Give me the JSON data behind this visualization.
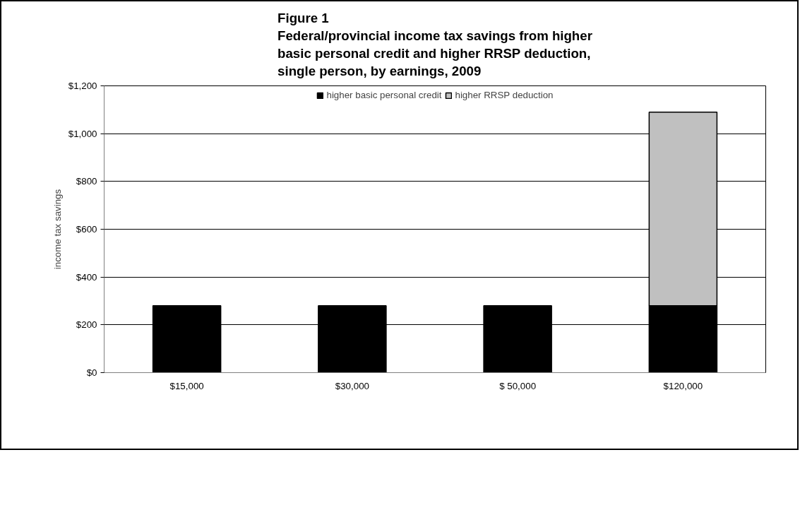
{
  "chart_data": {
    "type": "bar",
    "title": "Figure 1\nFederal/provincial income tax savings from higher\nbasic personal credit and higher RRSP deduction,\nsingle person, by earnings, 2009",
    "ylabel": "income tax savings",
    "categories": [
      "$15,000",
      "$30,000",
      "$ 50,000",
      "$120,000"
    ],
    "stacked": true,
    "series": [
      {
        "name": "higher basic personal credit",
        "color": "#000000",
        "values": [
          280,
          280,
          280,
          280
        ]
      },
      {
        "name": "higher RRSP deduction",
        "color": "#c0c0c0",
        "values": [
          null,
          null,
          null,
          810
        ]
      }
    ],
    "ylim": [
      0,
      1200
    ],
    "yticks": [
      {
        "value": 0,
        "label": "$0"
      },
      {
        "value": 200,
        "label": "$200"
      },
      {
        "value": 400,
        "label": "$400"
      },
      {
        "value": 600,
        "label": "$600"
      },
      {
        "value": 800,
        "label": "$800"
      },
      {
        "value": 1000,
        "label": "$1,000"
      },
      {
        "value": 1200,
        "label": "$1,200"
      }
    ],
    "grid": "y",
    "legend": "top"
  }
}
